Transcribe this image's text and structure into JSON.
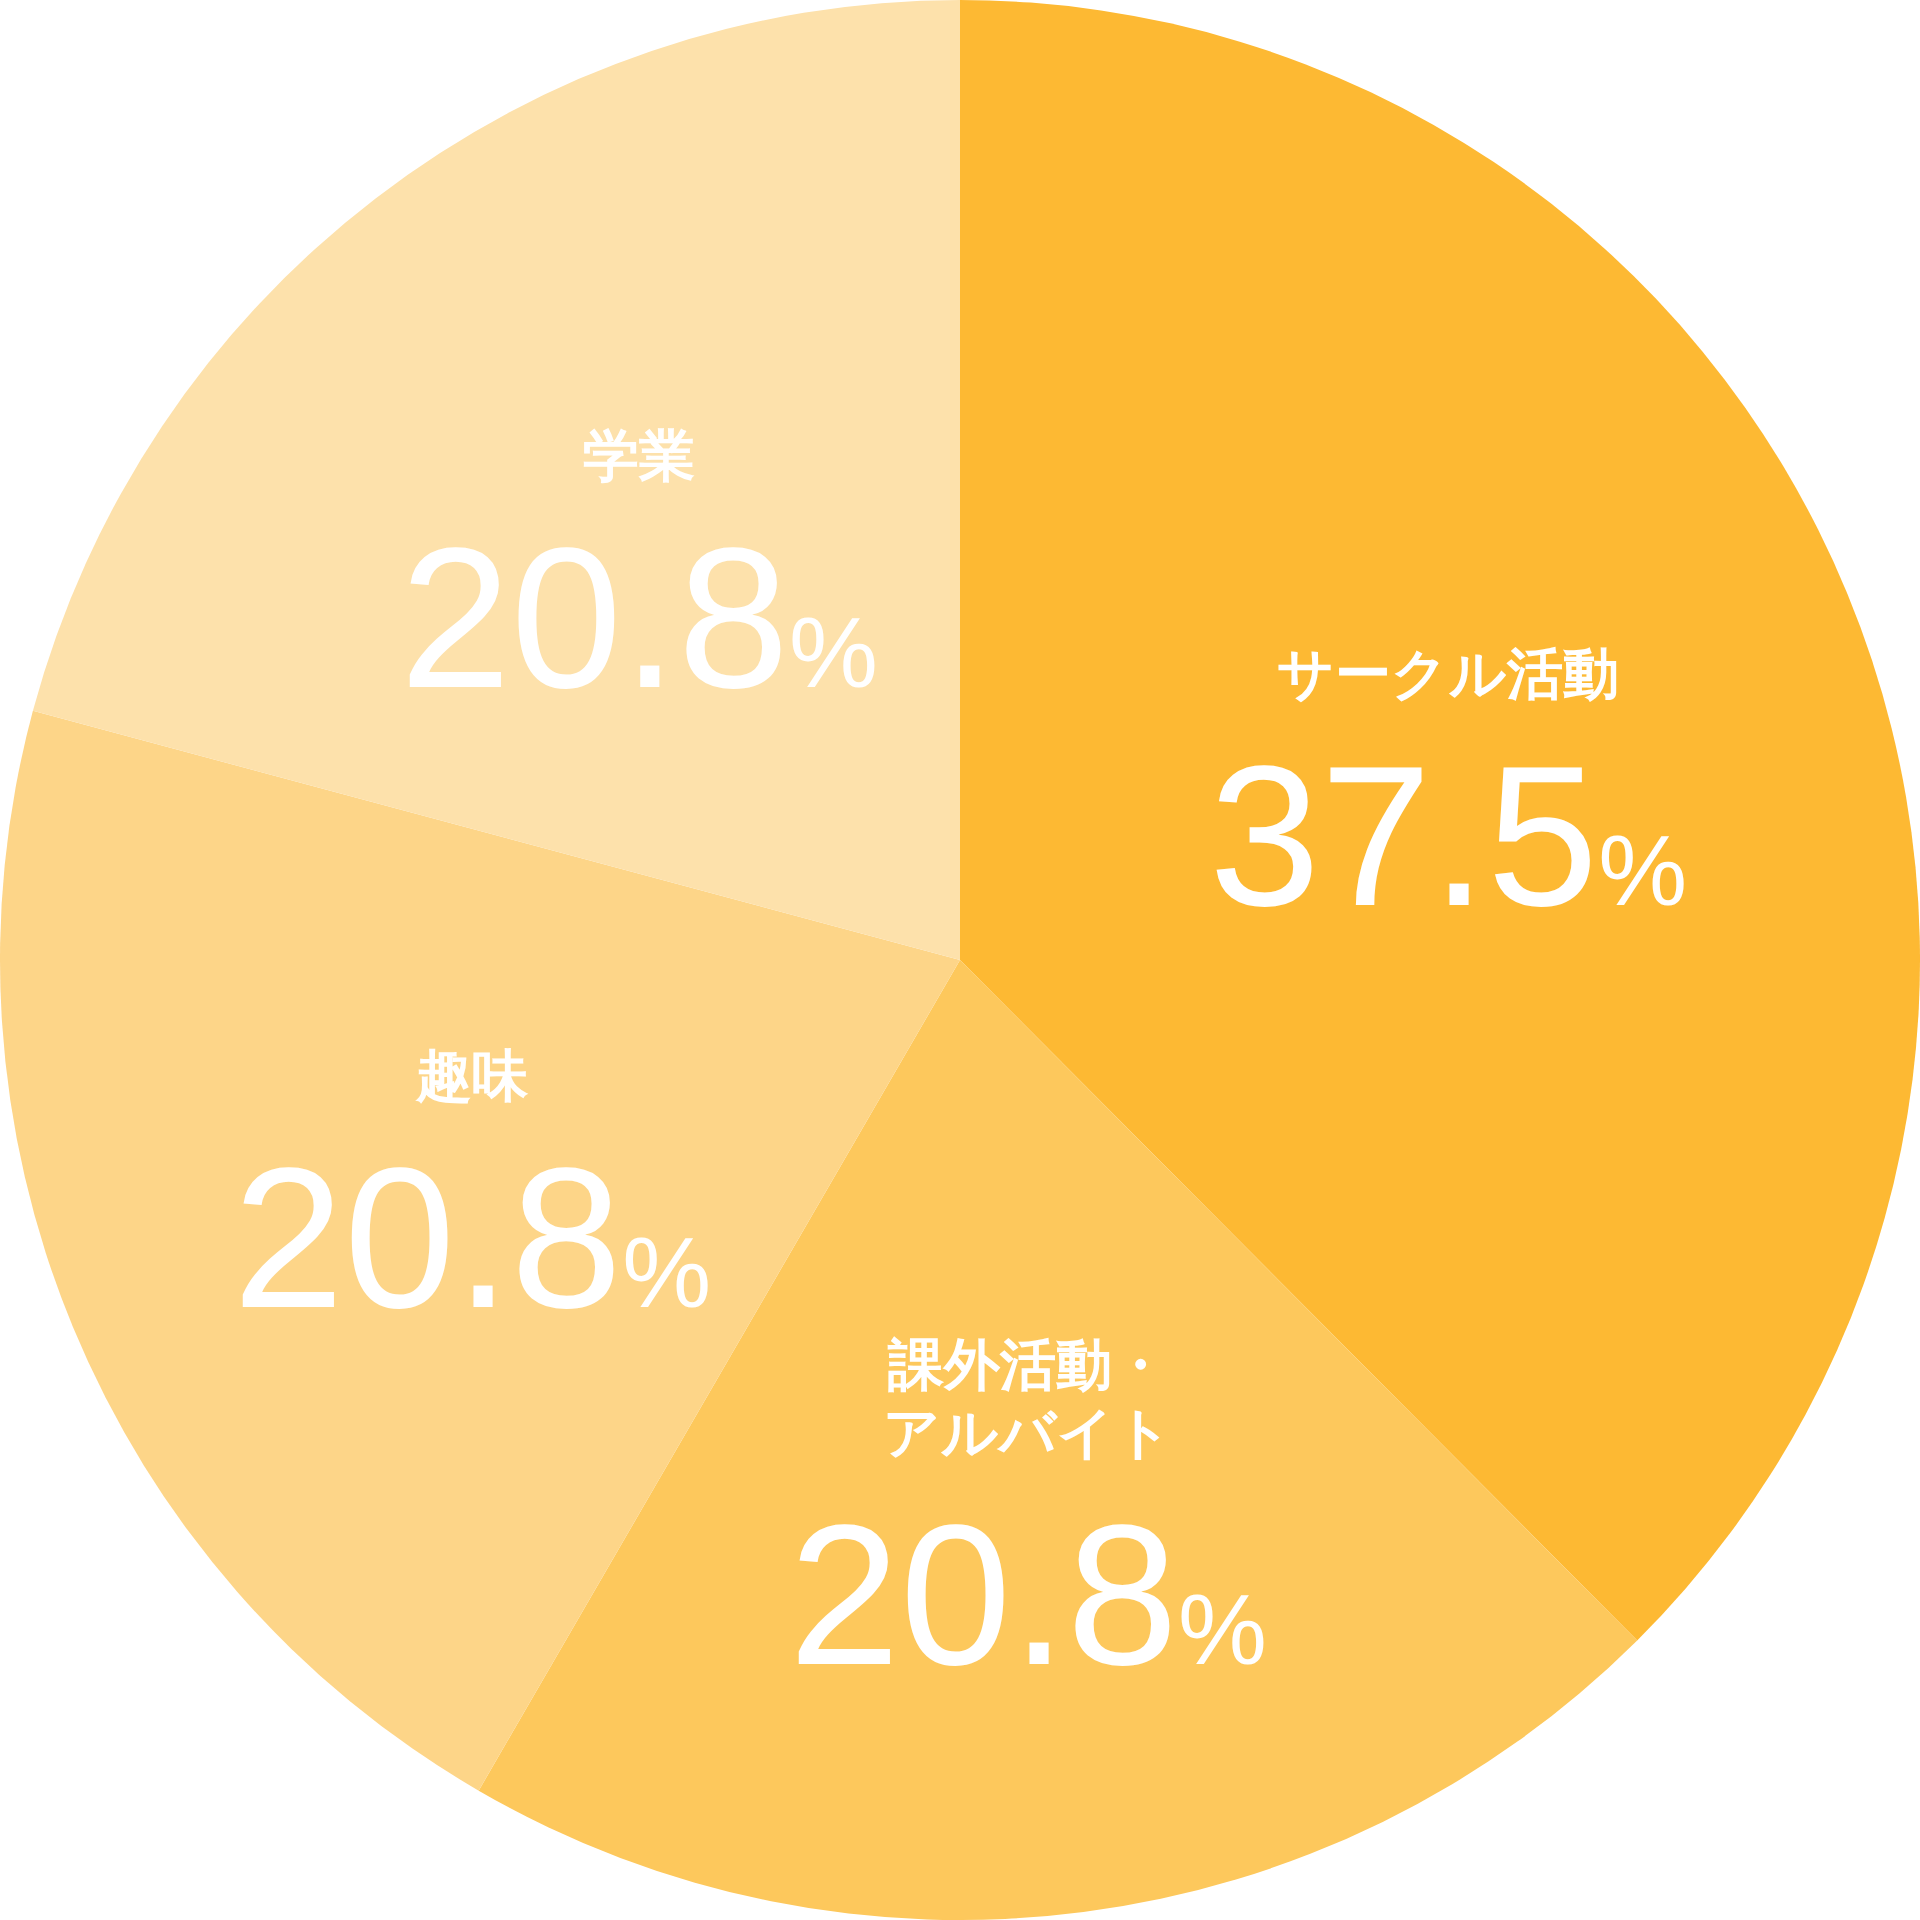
{
  "chart_data": {
    "type": "pie",
    "categories": [
      "サークル活動",
      "課外活動・アルバイト",
      "趣味",
      "学業"
    ],
    "values": [
      37.5,
      20.8,
      20.8,
      20.8
    ],
    "value_labels": [
      "37.5%",
      "20.8%",
      "20.8%",
      "20.8%"
    ],
    "colors": [
      "#fdb933",
      "#fdc85c",
      "#fdd588",
      "#fde1ab"
    ]
  }
}
